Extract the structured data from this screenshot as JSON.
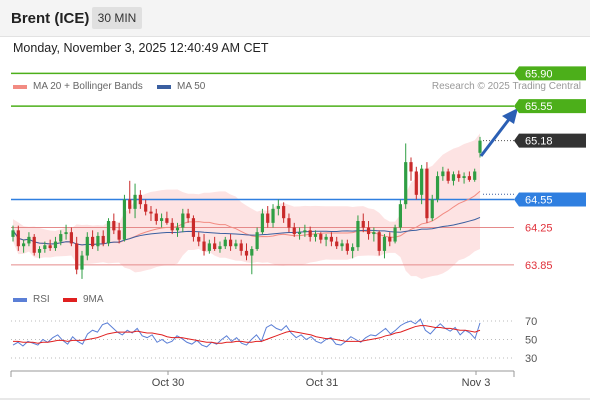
{
  "header": {
    "instrument": "Brent (ICE)",
    "timeframe": "30 MIN"
  },
  "datetime": "Monday, November 3, 2025 12:40:49 AM CET",
  "legend": [
    {
      "label": "MA 20 + Bollinger Bands",
      "color": "#f28b82"
    },
    {
      "label": "MA 50",
      "color": "#3a5fa0"
    }
  ],
  "credit": "Research © 2025 Trading Central",
  "rsi_legend": [
    {
      "label": "RSI",
      "color": "#5b7fd6"
    },
    {
      "label": "9MA",
      "color": "#e02020"
    }
  ],
  "chart_data": [
    {
      "type": "candlestick",
      "title": "",
      "x_ticks": [
        "Oct 30",
        "Oct 31",
        "Nov 3"
      ],
      "last_price": {
        "value": 65.18,
        "label": "65.18",
        "color": "#333333"
      },
      "levels": [
        {
          "value": 65.9,
          "label": "65.90",
          "kind": "resistance",
          "color": "#4caf1a",
          "boxed": true
        },
        {
          "value": 65.55,
          "label": "65.55",
          "kind": "resistance",
          "color": "#4caf1a",
          "boxed": true
        },
        {
          "value": 64.55,
          "label": "64.55",
          "kind": "pivot",
          "color": "#2f7fe0",
          "boxed": true
        },
        {
          "value": 64.25,
          "label": "64.25",
          "kind": "support",
          "color": "#e0303a",
          "boxed": false
        },
        {
          "value": 63.85,
          "label": "63.85",
          "kind": "support",
          "color": "#e0303a",
          "boxed": false
        }
      ],
      "candles": [
        [
          64.15,
          64.27,
          64.1,
          64.22
        ],
        [
          64.22,
          64.27,
          64.0,
          64.05
        ],
        [
          64.05,
          64.12,
          63.98,
          64.08
        ],
        [
          64.08,
          64.2,
          64.05,
          64.15
        ],
        [
          64.15,
          64.18,
          63.95,
          63.98
        ],
        [
          63.98,
          64.05,
          63.92,
          64.02
        ],
        [
          64.02,
          64.1,
          63.98,
          64.06
        ],
        [
          64.06,
          64.12,
          64.0,
          64.03
        ],
        [
          64.03,
          64.15,
          64.0,
          64.1
        ],
        [
          64.1,
          64.22,
          64.06,
          64.18
        ],
        [
          64.18,
          64.28,
          64.12,
          64.2
        ],
        [
          64.2,
          64.25,
          64.05,
          64.08
        ],
        [
          64.08,
          64.15,
          63.75,
          63.8
        ],
        [
          63.8,
          64.0,
          63.7,
          63.95
        ],
        [
          63.95,
          64.2,
          63.9,
          64.15
        ],
        [
          64.15,
          64.22,
          64.02,
          64.05
        ],
        [
          64.05,
          64.2,
          64.0,
          64.16
        ],
        [
          64.16,
          64.22,
          64.05,
          64.08
        ],
        [
          64.08,
          64.35,
          64.05,
          64.32
        ],
        [
          64.32,
          64.4,
          64.18,
          64.22
        ],
        [
          64.22,
          64.3,
          64.08,
          64.12
        ],
        [
          64.12,
          64.6,
          64.1,
          64.55
        ],
        [
          64.55,
          64.75,
          64.4,
          64.45
        ],
        [
          64.45,
          64.72,
          64.35,
          64.6
        ],
        [
          64.6,
          64.65,
          64.45,
          64.5
        ],
        [
          64.5,
          64.55,
          64.38,
          64.42
        ],
        [
          64.42,
          64.48,
          64.32,
          64.4
        ],
        [
          64.4,
          64.45,
          64.28,
          64.32
        ],
        [
          64.32,
          64.4,
          64.25,
          64.35
        ],
        [
          64.35,
          64.42,
          64.28,
          64.3
        ],
        [
          64.3,
          64.35,
          64.18,
          64.22
        ],
        [
          64.22,
          64.3,
          64.15,
          64.25
        ],
        [
          64.25,
          64.45,
          64.2,
          64.4
        ],
        [
          64.4,
          64.45,
          64.3,
          64.35
        ],
        [
          64.35,
          64.38,
          64.1,
          64.15
        ],
        [
          64.15,
          64.2,
          64.05,
          64.1
        ],
        [
          64.1,
          64.18,
          63.95,
          64.0
        ],
        [
          64.0,
          64.12,
          63.97,
          64.08
        ],
        [
          64.08,
          64.15,
          64.0,
          64.02
        ],
        [
          64.02,
          64.1,
          63.98,
          64.05
        ],
        [
          64.05,
          64.15,
          64.02,
          64.12
        ],
        [
          64.12,
          64.18,
          64.0,
          64.05
        ],
        [
          64.05,
          64.12,
          64.02,
          64.08
        ],
        [
          64.08,
          64.12,
          63.95,
          64.0
        ],
        [
          64.0,
          64.08,
          63.9,
          63.95
        ],
        [
          63.95,
          64.05,
          63.75,
          64.02
        ],
        [
          64.02,
          64.25,
          64.0,
          64.2
        ],
        [
          64.2,
          64.45,
          64.18,
          64.4
        ],
        [
          64.4,
          64.48,
          64.25,
          64.3
        ],
        [
          64.3,
          64.5,
          64.25,
          64.45
        ],
        [
          64.45,
          64.55,
          64.38,
          64.48
        ],
        [
          64.48,
          64.52,
          64.3,
          64.35
        ],
        [
          64.35,
          64.4,
          64.2,
          64.25
        ],
        [
          64.25,
          64.3,
          64.15,
          64.18
        ],
        [
          64.18,
          64.25,
          64.12,
          64.2
        ],
        [
          64.2,
          64.28,
          64.15,
          64.22
        ],
        [
          64.22,
          64.26,
          64.1,
          64.15
        ],
        [
          64.15,
          64.22,
          64.1,
          64.18
        ],
        [
          64.18,
          64.2,
          64.08,
          64.12
        ],
        [
          64.12,
          64.18,
          64.05,
          64.15
        ],
        [
          64.15,
          64.2,
          64.05,
          64.1
        ],
        [
          64.1,
          64.15,
          64.02,
          64.05
        ],
        [
          64.05,
          64.12,
          64.0,
          64.08
        ],
        [
          64.08,
          64.12,
          63.96,
          64.0
        ],
        [
          64.0,
          64.08,
          63.92,
          64.04
        ],
        [
          64.04,
          64.38,
          64.0,
          64.32
        ],
        [
          64.32,
          64.4,
          64.2,
          64.25
        ],
        [
          64.25,
          64.32,
          64.12,
          64.18
        ],
        [
          64.18,
          64.25,
          64.1,
          64.2
        ],
        [
          64.2,
          64.22,
          63.95,
          64.0
        ],
        [
          64.0,
          64.18,
          63.92,
          64.15
        ],
        [
          64.15,
          64.2,
          64.05,
          64.1
        ],
        [
          64.1,
          64.28,
          64.08,
          64.25
        ],
        [
          64.25,
          64.55,
          64.22,
          64.5
        ],
        [
          64.5,
          65.15,
          64.45,
          64.95
        ],
        [
          64.95,
          65.0,
          64.75,
          64.85
        ],
        [
          64.85,
          64.9,
          64.55,
          64.6
        ],
        [
          64.6,
          64.92,
          64.5,
          64.88
        ],
        [
          64.88,
          64.95,
          64.3,
          64.35
        ],
        [
          64.35,
          64.6,
          64.32,
          64.55
        ],
        [
          64.55,
          64.85,
          64.52,
          64.8
        ],
        [
          64.8,
          64.9,
          64.75,
          64.85
        ],
        [
          64.85,
          64.88,
          64.72,
          64.75
        ],
        [
          64.75,
          64.85,
          64.7,
          64.82
        ],
        [
          64.82,
          64.86,
          64.74,
          64.78
        ],
        [
          64.78,
          64.84,
          64.72,
          64.8
        ],
        [
          64.8,
          64.85,
          64.74,
          64.76
        ],
        [
          64.76,
          64.88,
          64.74,
          64.85
        ],
        [
          65.05,
          65.22,
          65.0,
          65.18
        ]
      ]
    },
    {
      "type": "line",
      "title": "RSI",
      "y_ticks": [
        70,
        50,
        30
      ],
      "ylim": [
        20,
        80
      ],
      "series": [
        {
          "name": "RSI",
          "color": "#5b7fd6",
          "values": [
            44,
            47,
            43,
            48,
            46,
            44,
            50,
            47,
            52,
            55,
            49,
            45,
            53,
            48,
            45,
            56,
            60,
            58,
            66,
            68,
            63,
            58,
            55,
            60,
            57,
            62,
            54,
            52,
            55,
            47,
            50,
            46,
            48,
            54,
            51,
            47,
            45,
            49,
            44,
            42,
            47,
            45,
            50,
            54,
            48,
            52,
            46,
            44,
            50,
            55,
            48,
            63,
            66,
            62,
            60,
            65,
            57,
            52,
            55,
            50,
            53,
            48,
            46,
            50,
            52,
            45,
            44,
            48,
            53,
            50,
            47,
            52,
            55,
            54,
            58,
            62,
            56,
            60,
            65,
            68,
            70,
            67,
            72,
            60,
            56,
            62,
            67,
            62,
            59,
            63,
            55,
            60,
            57,
            51,
            68
          ]
        },
        {
          "name": "9MA",
          "color": "#e02020",
          "values": [
            48,
            48,
            47,
            47,
            47,
            46,
            47,
            47,
            48,
            49,
            49,
            48,
            49,
            49,
            49,
            50,
            51,
            52,
            54,
            56,
            57,
            58,
            58,
            58,
            58,
            59,
            58,
            57,
            57,
            56,
            55,
            53,
            52,
            52,
            52,
            51,
            50,
            49,
            48,
            47,
            47,
            46,
            46,
            47,
            47,
            48,
            48,
            47,
            47,
            48,
            48,
            50,
            52,
            54,
            56,
            58,
            59,
            58,
            57,
            56,
            55,
            53,
            52,
            51,
            51,
            50,
            49,
            48,
            48,
            48,
            48,
            49,
            50,
            51,
            52,
            54,
            55,
            57,
            58,
            60,
            62,
            64,
            65,
            65,
            64,
            63,
            63,
            62,
            62,
            61,
            60,
            60,
            59,
            58,
            60
          ]
        }
      ]
    }
  ]
}
